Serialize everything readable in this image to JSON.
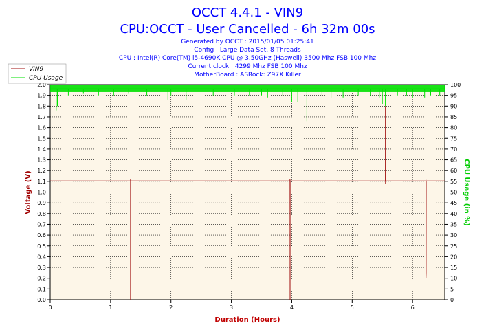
{
  "header": {
    "title": "OCCT 4.4.1 - VIN9",
    "subtitle": "CPU:OCCT - User Cancelled - 6h 32m 00s",
    "info_lines": [
      "Generated by OCCT : 2015/01/05 01:25:41",
      "Config : Large Data Set, 8 Threads",
      "CPU : Intel(R) Core(TM) i5-4690K CPU @ 3.50GHz (Haswell) 3500 Mhz FSB 100 Mhz",
      "Current clock : 4299 Mhz FSB 100 Mhz",
      "MotherBoard : ASRock: Z97X Killer"
    ]
  },
  "colors": {
    "plot_bg": "#fdf6e8",
    "vin9": "#a01010",
    "cpu": "#00e000",
    "grid": "#000000"
  },
  "chart_data": {
    "type": "line",
    "xlabel": "Duration (Hours)",
    "ylabel_left": "Voltage (V)",
    "ylabel_right": "CPU Usage (in %)",
    "xlim": [
      0,
      6.533
    ],
    "ylim_left": [
      0,
      2.0
    ],
    "ylim_right": [
      0,
      100
    ],
    "x_ticks": [
      "0",
      "1",
      "2",
      "3",
      "4",
      "5",
      "6"
    ],
    "y_left_ticks": [
      "0.0",
      "0.1",
      "0.2",
      "0.3",
      "0.4",
      "0.5",
      "0.6",
      "0.7",
      "0.8",
      "0.9",
      "1.0",
      "1.1",
      "1.2",
      "1.3",
      "1.4",
      "1.5",
      "1.6",
      "1.7",
      "1.8",
      "1.9",
      "2.0"
    ],
    "y_right_ticks": [
      "0",
      "5",
      "10",
      "15",
      "20",
      "25",
      "30",
      "35",
      "40",
      "45",
      "50",
      "55",
      "60",
      "65",
      "70",
      "75",
      "80",
      "85",
      "90",
      "95",
      "100"
    ],
    "grid": true,
    "legend_position": "top-left",
    "series": [
      {
        "name": "VIN9",
        "axis": "left",
        "baseline": 1.104,
        "points": [
          [
            0,
            1.104
          ],
          [
            1.33,
            1.104
          ],
          [
            1.33,
            0.0
          ],
          [
            1.331,
            1.12
          ],
          [
            1.332,
            1.104
          ],
          [
            3.97,
            1.104
          ],
          [
            3.971,
            1.12
          ],
          [
            3.972,
            0.0
          ],
          [
            3.973,
            1.104
          ],
          [
            5.55,
            1.104
          ],
          [
            5.551,
            1.8
          ],
          [
            5.552,
            1.08
          ],
          [
            5.553,
            1.104
          ],
          [
            6.22,
            1.104
          ],
          [
            6.221,
            1.12
          ],
          [
            6.222,
            0.2
          ],
          [
            6.225,
            0.25
          ],
          [
            6.226,
            1.104
          ],
          [
            6.533,
            1.104
          ]
        ]
      },
      {
        "name": "CPU Usage",
        "axis": "right",
        "baseline": 98,
        "dips": [
          [
            0.1,
            88
          ],
          [
            0.12,
            90
          ],
          [
            0.3,
            95
          ],
          [
            0.55,
            96
          ],
          [
            0.8,
            95
          ],
          [
            1.05,
            95
          ],
          [
            1.3,
            96
          ],
          [
            1.6,
            95
          ],
          [
            1.95,
            93
          ],
          [
            2.0,
            95
          ],
          [
            2.25,
            93
          ],
          [
            2.35,
            95
          ],
          [
            2.7,
            95
          ],
          [
            3.05,
            95
          ],
          [
            3.3,
            95
          ],
          [
            3.5,
            95
          ],
          [
            3.6,
            94
          ],
          [
            3.85,
            95
          ],
          [
            4.0,
            92
          ],
          [
            4.1,
            92
          ],
          [
            4.25,
            83
          ],
          [
            4.5,
            95
          ],
          [
            4.65,
            94
          ],
          [
            4.85,
            94
          ],
          [
            5.1,
            95
          ],
          [
            5.3,
            95
          ],
          [
            5.45,
            94
          ],
          [
            5.5,
            91
          ],
          [
            5.55,
            90
          ],
          [
            5.75,
            95
          ],
          [
            5.9,
            95
          ],
          [
            6.0,
            94
          ],
          [
            6.2,
            94
          ],
          [
            6.3,
            95
          ],
          [
            6.45,
            95
          ]
        ]
      }
    ]
  }
}
